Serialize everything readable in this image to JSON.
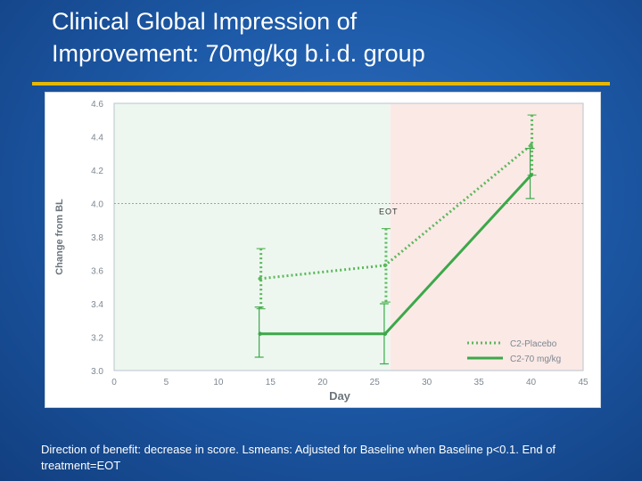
{
  "slide": {
    "title_line1": "Clinical Global Impression of",
    "title_line2": "Improvement: 70mg/kg b.i.d. group",
    "footnote": "Direction of benefit: decrease in score. Lsmeans: Adjusted for Baseline when Baseline p<0.1. End of treatment=EOT"
  },
  "colors": {
    "placebo": "#5cb85c",
    "treatment": "#3ca84a",
    "pre_eot_shading": "#edf7ef",
    "post_eot_shading": "#fbe9e6",
    "title_rule": "#e8b800"
  },
  "chart_data": {
    "type": "line",
    "xlabel": "Day",
    "ylabel": "Change from BL",
    "xlim": [
      0,
      45
    ],
    "ylim": [
      3.0,
      4.6
    ],
    "xticks": [
      0,
      5,
      10,
      15,
      20,
      25,
      30,
      35,
      40,
      45
    ],
    "yticks": [
      3.0,
      3.2,
      3.4,
      3.6,
      3.8,
      4.0,
      4.2,
      4.4,
      4.6
    ],
    "grid": false,
    "reference_line": {
      "y": 4.0,
      "style": "dotted"
    },
    "shaded_regions": [
      {
        "x_from": 0,
        "x_to": 26.5,
        "tone": "green"
      },
      {
        "x_from": 26.5,
        "x_to": 45,
        "tone": "red"
      }
    ],
    "annotations": [
      {
        "text": "EOT",
        "x": 26.5,
        "y": 4.0
      }
    ],
    "legend": {
      "position": "bottom-right"
    },
    "series": [
      {
        "name": "C2-Placebo",
        "style": "dotted",
        "x": [
          14,
          26,
          40
        ],
        "y": [
          3.55,
          3.63,
          4.35
        ],
        "err_low": [
          3.37,
          3.41,
          4.17
        ],
        "err_high": [
          3.73,
          3.85,
          4.53
        ]
      },
      {
        "name": "C2-70 mg/kg",
        "style": "solid",
        "x": [
          14,
          26,
          40
        ],
        "y": [
          3.22,
          3.22,
          4.17
        ],
        "err_low": [
          3.08,
          3.04,
          4.03
        ],
        "err_high": [
          3.38,
          3.4,
          4.33
        ]
      }
    ]
  }
}
